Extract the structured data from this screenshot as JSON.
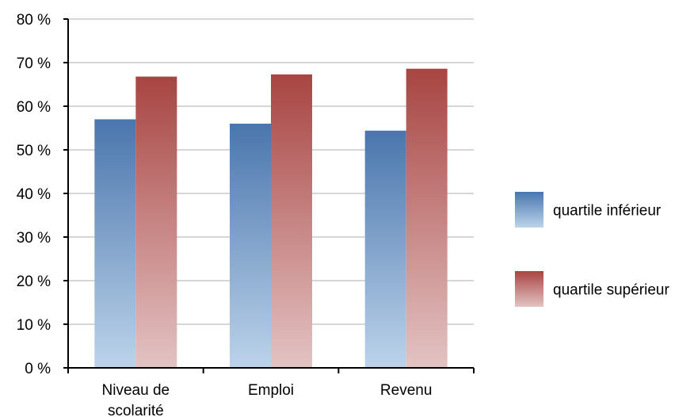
{
  "chart_data": {
    "type": "bar",
    "categories": [
      [
        "Niveau de",
        "scolarité"
      ],
      [
        "Emploi"
      ],
      [
        "Revenu"
      ]
    ],
    "series": [
      {
        "name": "quartile inférieur",
        "values": [
          57,
          56,
          54.4
        ],
        "color_top": "#4a76ad",
        "color_bottom": "#bcd3ea"
      },
      {
        "name": "quartile supérieur",
        "values": [
          66.8,
          67.3,
          68.6
        ],
        "color_top": "#a84542",
        "color_bottom": "#e3c3c3"
      }
    ],
    "ylim": [
      0,
      80
    ],
    "yticks": [
      0,
      10,
      20,
      30,
      40,
      50,
      60,
      70,
      80
    ],
    "ytick_suffix": " %",
    "grid": true,
    "legend": "right"
  }
}
